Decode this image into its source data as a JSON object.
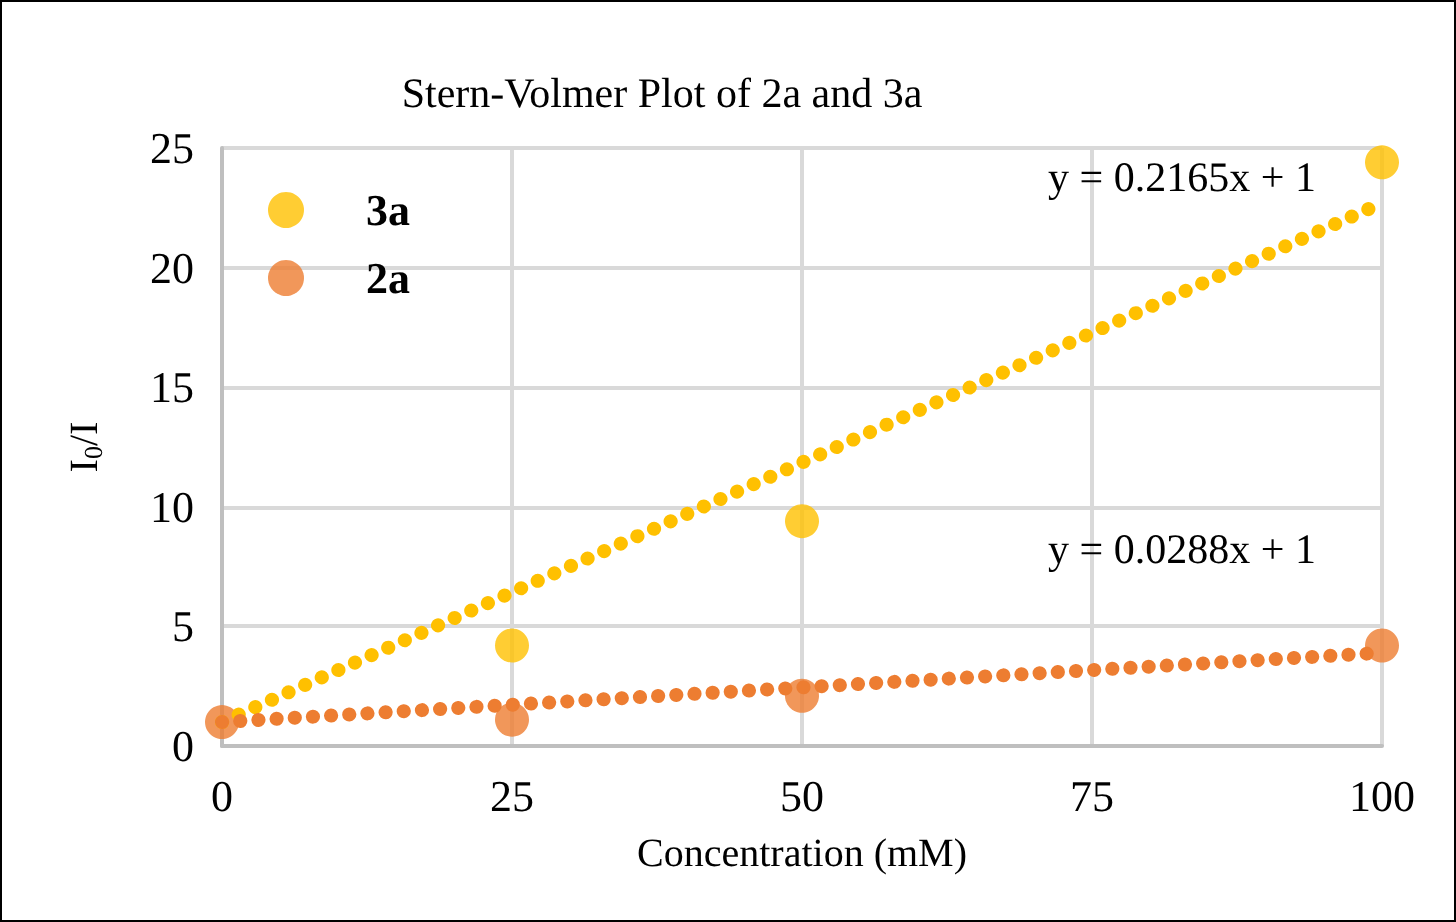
{
  "chart_data": {
    "type": "scatter",
    "title": "Stern-Volmer Plot of 2a and 3a",
    "xlabel": "Concentration (mM)",
    "ylabel": "I$_{0}$/I",
    "series": [
      {
        "name": "3a",
        "color": "#ffc000",
        "x": [
          25,
          50,
          100
        ],
        "values": [
          4.2,
          9.4,
          24.4
        ]
      },
      {
        "name": "2a",
        "color": "#ed7d31",
        "x": [
          0,
          25,
          50,
          100
        ],
        "values": [
          1,
          1.1,
          2.1,
          4.2
        ]
      },
      {
        "type": "line",
        "color": "#ffc000",
        "x": [
          0,
          100
        ],
        "values": [
          1,
          22.7
        ],
        "line_style": "dotted",
        "marker": "none"
      },
      {
        "type": "line",
        "color": "#ed7d31",
        "x": [
          0,
          100
        ],
        "values": [
          1,
          3.9
        ],
        "line_style": "dotted",
        "marker": "none"
      }
    ],
    "annotations": [
      "y = 0.2165x + 1",
      "y = 0.0288x + 1"
    ],
    "xlim": [
      0,
      100
    ],
    "xticks": [
      0,
      25,
      50,
      75,
      100
    ],
    "ylim": [
      0,
      25
    ],
    "yticks": [
      0,
      5,
      10,
      15,
      20,
      25
    ],
    "grid": true,
    "legend": "top left",
    "marker": "circle"
  }
}
